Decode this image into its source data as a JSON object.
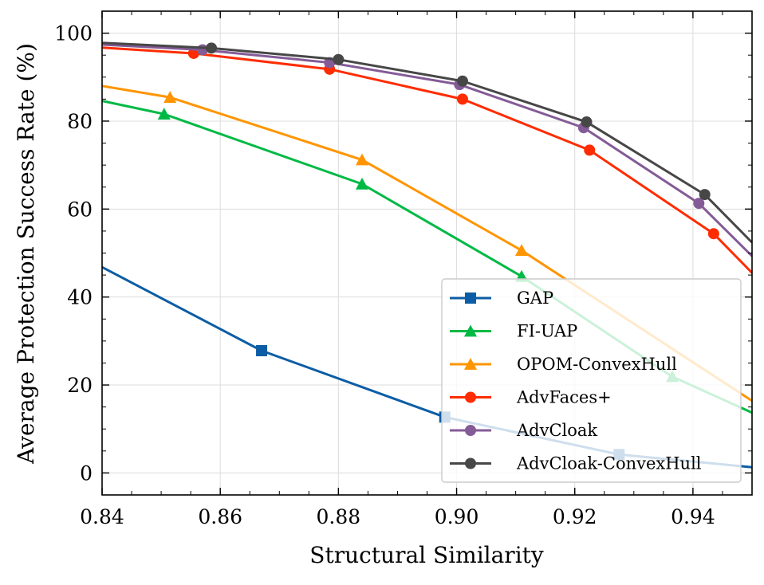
{
  "chart_data": {
    "type": "line",
    "title": "",
    "xlabel": "Structural Similarity",
    "ylabel": "Average Protection Success Rate (%)",
    "xlim": [
      0.84,
      0.95
    ],
    "ylim": [
      -5,
      105
    ],
    "xticks": [
      0.84,
      0.86,
      0.88,
      0.9,
      0.92,
      0.94
    ],
    "xtick_labels": [
      "0.84",
      "0.86",
      "0.88",
      "0.90",
      "0.92",
      "0.94"
    ],
    "yticks": [
      0,
      20,
      40,
      60,
      80,
      100
    ],
    "ytick_labels": [
      "0",
      "20",
      "40",
      "60",
      "80",
      "100"
    ],
    "grid": true,
    "legend_position": "bottom-right",
    "series": [
      {
        "name": "GAP",
        "color": "#0C5DA5",
        "marker": "square",
        "x": [
          0.84,
          0.867,
          0.898,
          0.9275,
          0.95
        ],
        "y": [
          46.8,
          27.8,
          12.7,
          4.2,
          1.3
        ],
        "marker_x": [
          0.867,
          0.898,
          0.9275
        ]
      },
      {
        "name": "FI-UAP",
        "color": "#00B945",
        "marker": "triangle",
        "x": [
          0.84,
          0.8505,
          0.884,
          0.911,
          0.9365,
          0.95
        ],
        "y": [
          84.6,
          81.6,
          65.7,
          44.7,
          21.9,
          13.7
        ],
        "marker_x": [
          0.8505,
          0.884,
          0.911,
          0.9365
        ]
      },
      {
        "name": "OPOM-ConvexHull",
        "color": "#FF9500",
        "marker": "triangle",
        "x": [
          0.84,
          0.8515,
          0.884,
          0.911,
          0.95
        ],
        "y": [
          88.0,
          85.4,
          71.2,
          50.6,
          16.4
        ],
        "marker_x": [
          0.8515,
          0.884,
          0.911
        ]
      },
      {
        "name": "AdvFaces+",
        "color": "#FF2C00",
        "marker": "circle",
        "x": [
          0.84,
          0.8555,
          0.8785,
          0.901,
          0.9225,
          0.9435,
          0.95
        ],
        "y": [
          96.7,
          95.4,
          91.8,
          85.0,
          73.4,
          54.4,
          45.5
        ],
        "marker_x": [
          0.8555,
          0.8785,
          0.901,
          0.9225,
          0.9435
        ]
      },
      {
        "name": "AdvCloak",
        "color": "#845B97",
        "marker": "circle",
        "x": [
          0.84,
          0.857,
          0.8785,
          0.9005,
          0.9215,
          0.941,
          0.95
        ],
        "y": [
          97.4,
          96.2,
          93.3,
          88.3,
          78.5,
          61.3,
          49.3
        ],
        "marker_x": [
          0.857,
          0.8785,
          0.9005,
          0.9215,
          0.941
        ]
      },
      {
        "name": "AdvCloak-ConvexHull",
        "color": "#474747",
        "marker": "circle",
        "x": [
          0.84,
          0.8585,
          0.88,
          0.901,
          0.922,
          0.942,
          0.95
        ],
        "y": [
          97.8,
          96.6,
          94.0,
          89.1,
          79.8,
          63.3,
          52.4
        ],
        "marker_x": [
          0.8585,
          0.88,
          0.901,
          0.922,
          0.942
        ]
      }
    ]
  }
}
